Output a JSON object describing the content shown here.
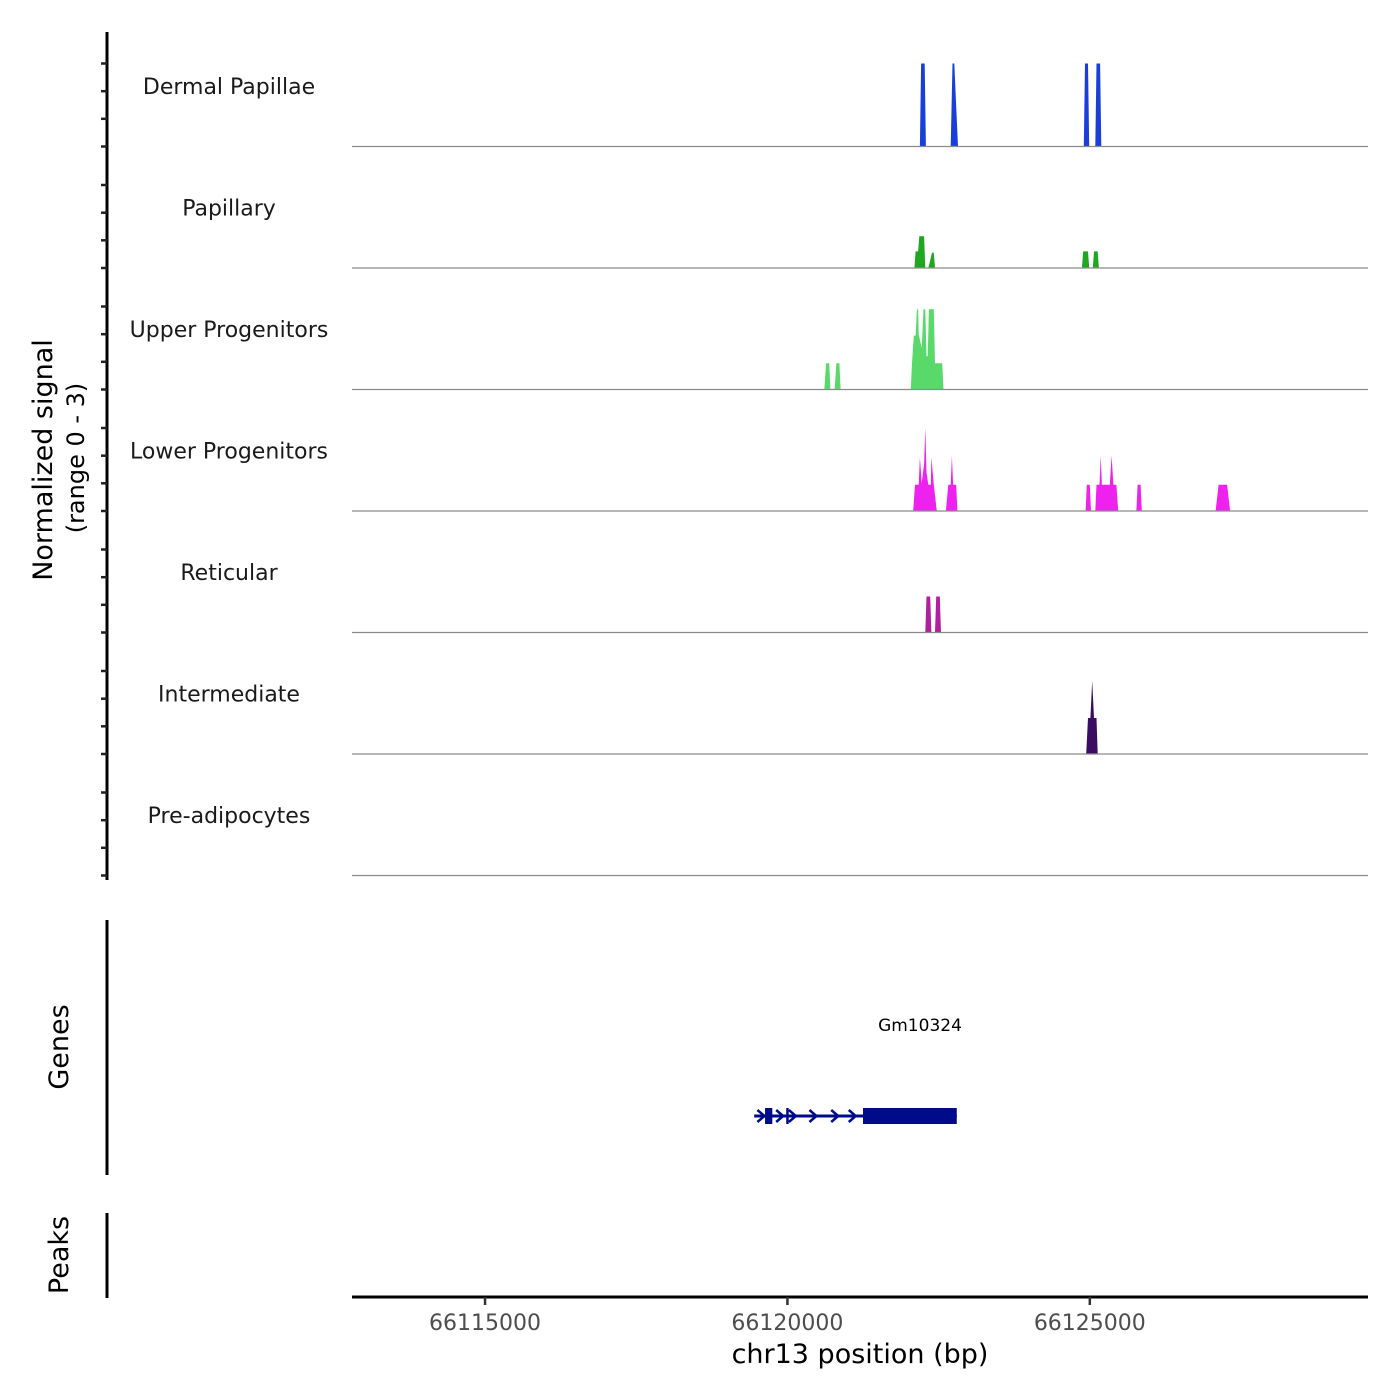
{
  "chart_data": {
    "type": "area",
    "title": "",
    "ylabel_line1": "Normalized signal",
    "ylabel_line2": "(range 0 - 3)",
    "xlabel": "chr13 position (bp)",
    "xlim": [
      66112800,
      66129600
    ],
    "ylim": [
      0,
      3
    ],
    "x_ticks": [
      66115000,
      66120000,
      66125000
    ],
    "x_tick_labels": [
      "66115000",
      "66120000",
      "66125000"
    ],
    "tracks": [
      {
        "name": "Dermal Papillae",
        "color": "#1a3fd9",
        "points": [
          [
            66122190,
            0
          ],
          [
            66122210,
            3
          ],
          [
            66122270,
            3
          ],
          [
            66122290,
            0
          ],
          [
            66122700,
            0
          ],
          [
            66122730,
            3
          ],
          [
            66122760,
            3
          ],
          [
            66122820,
            0
          ],
          [
            66124900,
            0
          ],
          [
            66124920,
            3
          ],
          [
            66124970,
            3
          ],
          [
            66124990,
            0
          ],
          [
            66125090,
            0
          ],
          [
            66125110,
            3
          ],
          [
            66125170,
            3
          ],
          [
            66125190,
            0
          ]
        ]
      },
      {
        "name": "Papillary",
        "color": "#1fa81f",
        "points": [
          [
            66122100,
            0
          ],
          [
            66122120,
            0.6
          ],
          [
            66122160,
            0.6
          ],
          [
            66122180,
            1.15
          ],
          [
            66122260,
            1.15
          ],
          [
            66122280,
            0
          ],
          [
            66122330,
            0
          ],
          [
            66122390,
            0.55
          ],
          [
            66122420,
            0.55
          ],
          [
            66122440,
            0
          ],
          [
            66124870,
            0
          ],
          [
            66124890,
            0.6
          ],
          [
            66124970,
            0.6
          ],
          [
            66124990,
            0
          ],
          [
            66125050,
            0
          ],
          [
            66125070,
            0.6
          ],
          [
            66125130,
            0.6
          ],
          [
            66125150,
            0
          ]
        ]
      },
      {
        "name": "Upper Progenitors",
        "color": "#5ad96b",
        "points": [
          [
            66120610,
            0
          ],
          [
            66120640,
            0.95
          ],
          [
            66120690,
            0.95
          ],
          [
            66120710,
            0
          ],
          [
            66120780,
            0
          ],
          [
            66120810,
            0.95
          ],
          [
            66120860,
            0.95
          ],
          [
            66120880,
            0
          ],
          [
            66122040,
            0
          ],
          [
            66122060,
            0.95
          ],
          [
            66122090,
            1.95
          ],
          [
            66122120,
            1.95
          ],
          [
            66122140,
            2.85
          ],
          [
            66122160,
            2.95
          ],
          [
            66122170,
            2.0
          ],
          [
            66122220,
            1.5
          ],
          [
            66122250,
            2.9
          ],
          [
            66122280,
            2.9
          ],
          [
            66122300,
            1.2
          ],
          [
            66122320,
            1.2
          ],
          [
            66122340,
            2.9
          ],
          [
            66122420,
            2.9
          ],
          [
            66122440,
            0.95
          ],
          [
            66122560,
            0.95
          ],
          [
            66122580,
            0
          ]
        ]
      },
      {
        "name": "Lower Progenitors",
        "color": "#ee22ee",
        "points": [
          [
            66122080,
            0
          ],
          [
            66122110,
            0.95
          ],
          [
            66122170,
            0.95
          ],
          [
            66122190,
            1.95
          ],
          [
            66122220,
            1.0
          ],
          [
            66122260,
            1.7
          ],
          [
            66122280,
            3.0
          ],
          [
            66122300,
            1.4
          ],
          [
            66122330,
            0.95
          ],
          [
            66122370,
            0.95
          ],
          [
            66122380,
            1.95
          ],
          [
            66122420,
            0.95
          ],
          [
            66122470,
            0
          ],
          [
            66122490,
            0
          ],
          [
            66122620,
            0
          ],
          [
            66122660,
            0.95
          ],
          [
            66122700,
            0.95
          ],
          [
            66122720,
            2.0
          ],
          [
            66122740,
            0.95
          ],
          [
            66122790,
            0.95
          ],
          [
            66122810,
            0
          ],
          [
            66124930,
            0
          ],
          [
            66124950,
            0.95
          ],
          [
            66125000,
            0.95
          ],
          [
            66125020,
            0
          ],
          [
            66125090,
            0
          ],
          [
            66125110,
            0.95
          ],
          [
            66125160,
            0.95
          ],
          [
            66125180,
            2.0
          ],
          [
            66125200,
            0.95
          ],
          [
            66125330,
            0.95
          ],
          [
            66125360,
            2.0
          ],
          [
            66125390,
            0.95
          ],
          [
            66125440,
            0.95
          ],
          [
            66125470,
            0
          ],
          [
            66125770,
            0
          ],
          [
            66125790,
            0.95
          ],
          [
            66125840,
            0.95
          ],
          [
            66125860,
            0
          ],
          [
            66127080,
            0
          ],
          [
            66127130,
            0.95
          ],
          [
            66127270,
            0.95
          ],
          [
            66127320,
            0
          ]
        ]
      },
      {
        "name": "Reticular",
        "color": "#b0209e",
        "points": [
          [
            66122280,
            0
          ],
          [
            66122300,
            1.3
          ],
          [
            66122360,
            1.3
          ],
          [
            66122380,
            0
          ],
          [
            66122440,
            0
          ],
          [
            66122460,
            1.3
          ],
          [
            66122520,
            1.3
          ],
          [
            66122540,
            0
          ]
        ]
      },
      {
        "name": "Intermediate",
        "color": "#3a0d63",
        "points": [
          [
            66124940,
            0
          ],
          [
            66124970,
            1.3
          ],
          [
            66125010,
            1.3
          ],
          [
            66125040,
            2.65
          ],
          [
            66125070,
            1.3
          ],
          [
            66125110,
            1.3
          ],
          [
            66125130,
            0
          ]
        ]
      },
      {
        "name": "Pre-adipocytes",
        "color": "#2a9d8f",
        "points": []
      }
    ],
    "genes_label": "Genes",
    "peaks_label": "Peaks",
    "genes": [
      {
        "name": "Gm10324",
        "start": 66119450,
        "end": 66122800,
        "strand": "+",
        "color": "#000b8a",
        "exons": [
          [
            66119630,
            66119750
          ],
          [
            66119980,
            66120000
          ],
          [
            66121250,
            66122800
          ]
        ],
        "arrows": [
          66119570,
          66119880,
          66120090,
          66120430,
          66120790,
          66121080
        ]
      }
    ]
  }
}
